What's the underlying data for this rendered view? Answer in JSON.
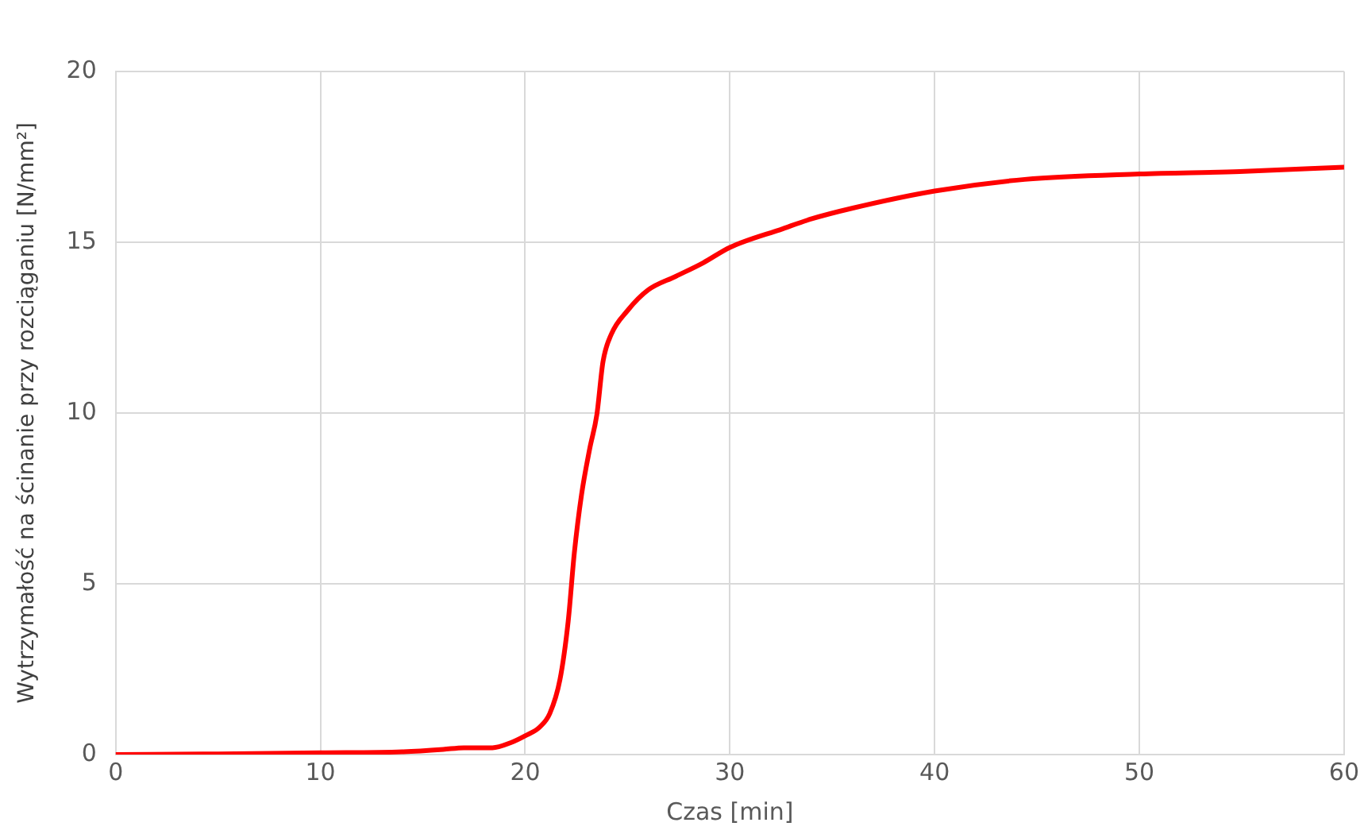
{
  "chart_data": {
    "type": "line",
    "xlabel": "Czas [min]",
    "ylabel": "Wytrzymałość na ścinanie przy rozciąganiu [N/mm²]",
    "series": [
      {
        "color": "#ff0000",
        "x": [
          0,
          5,
          10,
          14,
          16,
          17,
          18.4,
          19.3,
          20,
          20.7,
          21.2,
          21.7,
          22.1,
          22.4,
          22.75,
          23.15,
          23.5,
          23.8,
          24.2,
          25,
          26,
          27.35,
          28.7,
          30,
          32.6,
          33.9,
          36,
          40,
          44.4,
          50,
          54.9,
          60
        ],
        "values": [
          0,
          0.02,
          0.05,
          0.08,
          0.15,
          0.2,
          0.2,
          0.35,
          0.55,
          0.8,
          1.2,
          2.2,
          3.9,
          5.9,
          7.6,
          8.95,
          9.95,
          11.5,
          12.3,
          13,
          13.6,
          14,
          14.4,
          14.85,
          15.4,
          15.67,
          16,
          16.5,
          16.84,
          17,
          17.07,
          17.2
        ]
      }
    ],
    "xlim": [
      0,
      60
    ],
    "xticks": [
      0,
      10,
      20,
      30,
      40,
      50,
      60
    ],
    "ylim": [
      0,
      20
    ],
    "yticks": [
      0,
      5,
      10,
      15,
      20
    ],
    "grid": true,
    "legend": false,
    "marker": "none",
    "line_style": "solid"
  }
}
